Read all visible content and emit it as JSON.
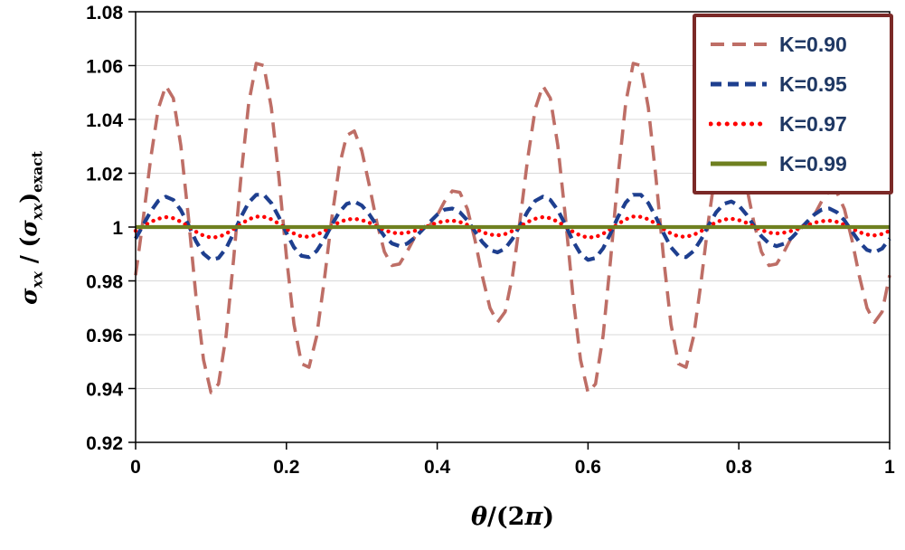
{
  "colors": {
    "grid": "#d9d9d9",
    "axis": "#000000",
    "legend_border": "#7B2927",
    "legend_text": "#1F3864",
    "background": "#ffffff"
  },
  "labels": {
    "y": {
      "sigma1": "σ",
      "sub1": "xx",
      "mid": " / (",
      "sigma2": "σ",
      "sub2": "xx",
      "close": ")",
      "sub3": "exact"
    },
    "x": {
      "theta": "θ",
      "rest1": "/(2",
      "pi": "π",
      "rest2": ")"
    }
  },
  "chart_data": {
    "type": "line",
    "title": "",
    "xlabel": "θ/(2π)",
    "ylabel": "σxx / (σxx)exact",
    "xlim": [
      0,
      1
    ],
    "ylim": [
      0.92,
      1.08
    ],
    "grid": true,
    "legend_position": "top-right",
    "xticks": [
      0,
      0.2,
      0.4,
      0.6,
      0.8,
      1
    ],
    "xtick_labels": [
      "0",
      "0.2",
      "0.4",
      "0.6",
      "0.8",
      "1"
    ],
    "yticks": [
      1.08,
      1.06,
      1.04,
      1.02,
      1,
      0.98,
      0.96,
      0.94,
      0.92
    ],
    "ytick_labels": [
      "1.08",
      "1.06",
      "1.04",
      "1.02",
      "1",
      "0.98",
      "0.96",
      "0.94",
      "0.92"
    ],
    "x": [
      0,
      0.01,
      0.02,
      0.03,
      0.04,
      0.05,
      0.06,
      0.07,
      0.08,
      0.09,
      0.1,
      0.11,
      0.12,
      0.13,
      0.14,
      0.15,
      0.16,
      0.17,
      0.18,
      0.19,
      0.2,
      0.21,
      0.22,
      0.23,
      0.24,
      0.25,
      0.26,
      0.27,
      0.28,
      0.29,
      0.3,
      0.31,
      0.32,
      0.33,
      0.34,
      0.35,
      0.36,
      0.37,
      0.38,
      0.39,
      0.4,
      0.41,
      0.42,
      0.43,
      0.44,
      0.45,
      0.46,
      0.47,
      0.48,
      0.49,
      0.5,
      0.51,
      0.52,
      0.53,
      0.54,
      0.55,
      0.56,
      0.57,
      0.58,
      0.59,
      0.6,
      0.61,
      0.62,
      0.63,
      0.64,
      0.65,
      0.66,
      0.67,
      0.68,
      0.69,
      0.7,
      0.71,
      0.72,
      0.73,
      0.74,
      0.75,
      0.76,
      0.77,
      0.78,
      0.79,
      0.8,
      0.81,
      0.82,
      0.83,
      0.84,
      0.85,
      0.86,
      0.87,
      0.88,
      0.89,
      0.9,
      0.91,
      0.92,
      0.93,
      0.94,
      0.95,
      0.96,
      0.97,
      0.98,
      0.99,
      1
    ],
    "series": [
      {
        "name": "K=0.90",
        "color": "#BE6E66",
        "style": "long-dash",
        "values": [
          0.9821,
          1.0028,
          1.0255,
          1.0439,
          1.0525,
          1.0479,
          1.0303,
          1.0037,
          0.9745,
          0.9507,
          0.9385,
          0.9417,
          0.9597,
          0.9881,
          1.0196,
          1.0461,
          1.0608,
          1.06,
          1.0444,
          1.0185,
          0.9891,
          0.964,
          0.9492,
          0.9479,
          0.9594,
          0.9797,
          1.0028,
          1.0225,
          1.0341,
          1.0357,
          1.0283,
          1.0155,
          1.0016,
          0.9908,
          0.9857,
          0.9863,
          0.9908,
          0.9962,
          0.9996,
          1.0006,
          1.0044,
          1.0096,
          1.0134,
          1.0129,
          1.0067,
          0.9953,
          0.9816,
          0.9699,
          0.9646,
          0.9685,
          0.9821,
          1.0028,
          1.0255,
          1.0439,
          1.0525,
          1.0479,
          1.0303,
          1.0037,
          0.9745,
          0.9507,
          0.9385,
          0.9417,
          0.9597,
          0.9881,
          1.0196,
          1.0461,
          1.0608,
          1.06,
          1.0444,
          1.0185,
          0.9891,
          0.964,
          0.9492,
          0.9479,
          0.9594,
          0.9797,
          1.0028,
          1.0225,
          1.0341,
          1.0357,
          1.0283,
          1.0155,
          1.0016,
          0.9908,
          0.9857,
          0.9863,
          0.9908,
          0.9962,
          0.9996,
          1.0006,
          1.0044,
          1.0096,
          1.0134,
          1.0129,
          1.0067,
          0.9953,
          0.9816,
          0.9699,
          0.9646,
          0.9685,
          0.9821
        ]
      },
      {
        "name": "K=0.95",
        "color": "#1E3F8F",
        "style": "dash",
        "values": [
          0.9957,
          1.0007,
          1.0058,
          1.0097,
          1.0113,
          1.0101,
          1.0063,
          1.0008,
          0.9948,
          0.9901,
          0.9878,
          0.9885,
          0.9921,
          0.9977,
          1.0039,
          1.0091,
          1.012,
          1.012,
          1.0089,
          1.0037,
          0.9978,
          0.9925,
          0.9893,
          0.9888,
          0.9911,
          0.9954,
          1.0007,
          1.0055,
          1.0086,
          1.0095,
          1.008,
          1.0047,
          1.0005,
          0.9966,
          0.9939,
          0.9929,
          0.9938,
          0.996,
          0.9989,
          1.0018,
          1.0046,
          1.0065,
          1.0069,
          1.0055,
          1.0025,
          0.9984,
          0.9944,
          0.9915,
          0.9906,
          0.992,
          0.9957,
          1.0007,
          1.0058,
          1.0097,
          1.0113,
          1.0101,
          1.0063,
          1.0008,
          0.9948,
          0.9901,
          0.9878,
          0.9885,
          0.9921,
          0.9977,
          1.0039,
          1.0091,
          1.012,
          1.012,
          1.0089,
          1.0037,
          0.9978,
          0.9925,
          0.9893,
          0.9888,
          0.9911,
          0.9954,
          1.0007,
          1.0055,
          1.0086,
          1.0095,
          1.008,
          1.0047,
          1.0005,
          0.9966,
          0.9939,
          0.9929,
          0.9938,
          0.996,
          0.9989,
          1.0018,
          1.0046,
          1.0065,
          1.0069,
          1.0055,
          1.0025,
          0.9984,
          0.9944,
          0.9915,
          0.9906,
          0.992,
          0.9957
        ]
      },
      {
        "name": "K=0.97",
        "color": "#FF0000",
        "style": "dot",
        "values": [
          0.9986,
          1.0002,
          1.0019,
          1.0031,
          1.0037,
          1.0033,
          1.002,
          1.0002,
          0.9983,
          0.9968,
          0.9961,
          0.9963,
          0.9975,
          0.9993,
          1.0012,
          1.0029,
          1.0039,
          1.0038,
          1.0029,
          1.0012,
          0.9993,
          0.9976,
          0.9965,
          0.9964,
          0.9971,
          0.9985,
          1.0002,
          1.0018,
          1.0028,
          1.0031,
          1.0026,
          1.0016,
          1.0002,
          0.9989,
          0.9979,
          0.9976,
          0.9979,
          0.9986,
          0.9996,
          1.0006,
          1.0016,
          1.0022,
          1.0024,
          1.0019,
          1.0008,
          0.9995,
          0.9981,
          0.9972,
          0.9969,
          0.9974,
          0.9986,
          1.0002,
          1.0019,
          1.0031,
          1.0037,
          1.0033,
          1.002,
          1.0002,
          0.9983,
          0.9968,
          0.9961,
          0.9963,
          0.9975,
          0.9993,
          1.0012,
          1.0029,
          1.0039,
          1.0038,
          1.0029,
          1.0012,
          0.9993,
          0.9976,
          0.9965,
          0.9964,
          0.9971,
          0.9985,
          1.0002,
          1.0018,
          1.0028,
          1.0031,
          1.0026,
          1.0016,
          1.0002,
          0.9989,
          0.9979,
          0.9976,
          0.9979,
          0.9986,
          0.9996,
          1.0006,
          1.0016,
          1.0022,
          1.0024,
          1.0019,
          1.0008,
          0.9995,
          0.9981,
          0.9972,
          0.9969,
          0.9974,
          0.9986
        ]
      },
      {
        "name": "K=0.99",
        "color": "#6F8020",
        "style": "solid",
        "values": [
          1,
          1,
          1,
          1,
          1,
          1,
          1,
          1,
          1,
          1,
          1,
          1,
          1,
          1,
          1,
          1,
          1,
          1,
          1,
          1,
          1,
          1,
          1,
          1,
          1,
          1,
          1,
          1,
          1,
          1,
          1,
          1,
          1,
          1,
          1,
          1,
          1,
          1,
          1,
          1,
          1,
          1,
          1,
          1,
          1,
          1,
          1,
          1,
          1,
          1,
          1,
          1,
          1,
          1,
          1,
          1,
          1,
          1,
          1,
          1,
          1,
          1,
          1,
          1,
          1,
          1,
          1,
          1,
          1,
          1,
          1,
          1,
          1,
          1,
          1,
          1,
          1,
          1,
          1,
          1,
          1,
          1,
          1,
          1,
          1,
          1,
          1,
          1,
          1,
          1,
          1,
          1,
          1,
          1,
          1,
          1,
          1,
          1,
          1,
          1,
          1
        ]
      }
    ]
  }
}
